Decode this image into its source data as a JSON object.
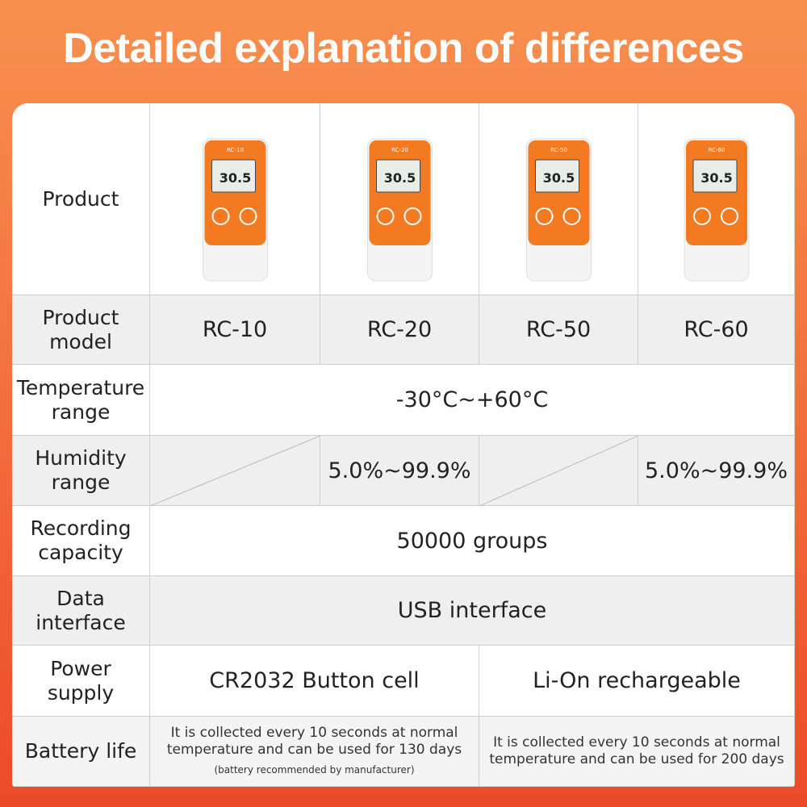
{
  "header": {
    "title": "Detailed explanation of differences"
  },
  "table": {
    "product_label": "Product",
    "devices": [
      {
        "label": "RC-10",
        "reading": "30.5"
      },
      {
        "label": "RC-20",
        "reading": "30.5"
      },
      {
        "label": "RC-50",
        "reading": "30.5"
      },
      {
        "label": "RC-60",
        "reading": "30.5"
      }
    ],
    "rows": [
      {
        "label": "Product model",
        "cells": [
          "RC-10",
          "RC-20",
          "RC-50",
          "RC-60"
        ]
      },
      {
        "label": "Temperature range",
        "cells": [
          "-30°C~+60°C"
        ]
      },
      {
        "label": "Humidity range",
        "cells": [
          null,
          "5.0%~99.9%",
          null,
          "5.0%~99.9%"
        ]
      },
      {
        "label": "Recording capacity",
        "cells": [
          "50000 groups"
        ]
      },
      {
        "label": "Data interface",
        "cells": [
          "USB interface"
        ]
      },
      {
        "label": "Power supply",
        "cells": [
          "CR2032 Button cell",
          "Li-On rechargeable"
        ]
      },
      {
        "label": "Battery life",
        "cells": [
          {
            "text": "It is collected every 10 seconds at normal temperature and can be used for 130 days",
            "note": "(battery recommended by manufacturer)"
          },
          {
            "text": "It is collected every 10 seconds at normal temperature and can be used for 200 days"
          }
        ]
      }
    ]
  }
}
